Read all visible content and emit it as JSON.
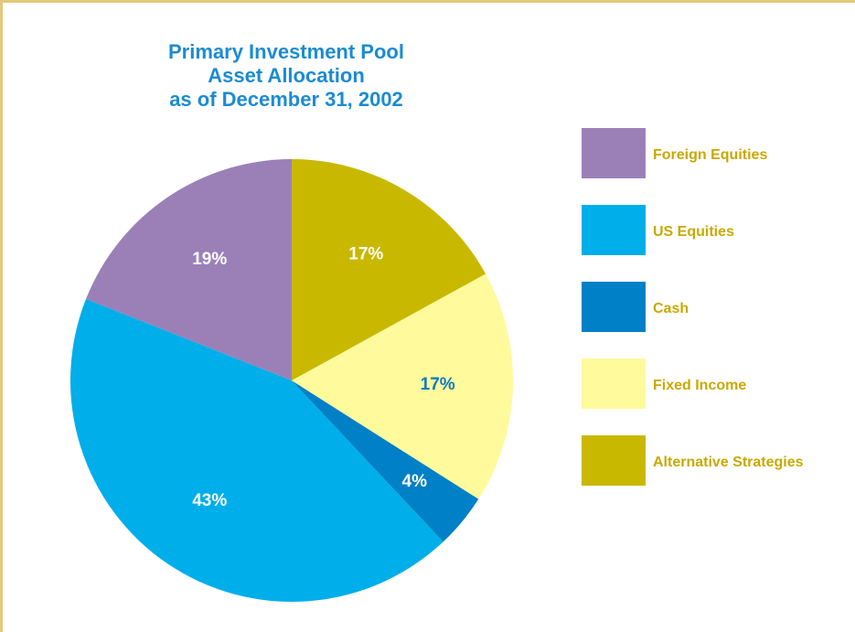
{
  "chart_data": {
    "type": "pie",
    "title": [
      "Primary Investment Pool",
      "Asset Allocation",
      "as of December 31, 2002"
    ],
    "categories": [
      "Foreign Equities",
      "US Equities",
      "Cash",
      "Fixed Income",
      "Alternative Strategies"
    ],
    "values": [
      19,
      43,
      4,
      17,
      17
    ],
    "value_labels": [
      "19%",
      "43%",
      "4%",
      "17%",
      "17%"
    ],
    "colors": [
      "#9b80b8",
      "#00aeea",
      "#0080c6",
      "#fffa9c",
      "#c9b800"
    ],
    "direction": "counterclockwise",
    "legend": "right"
  }
}
